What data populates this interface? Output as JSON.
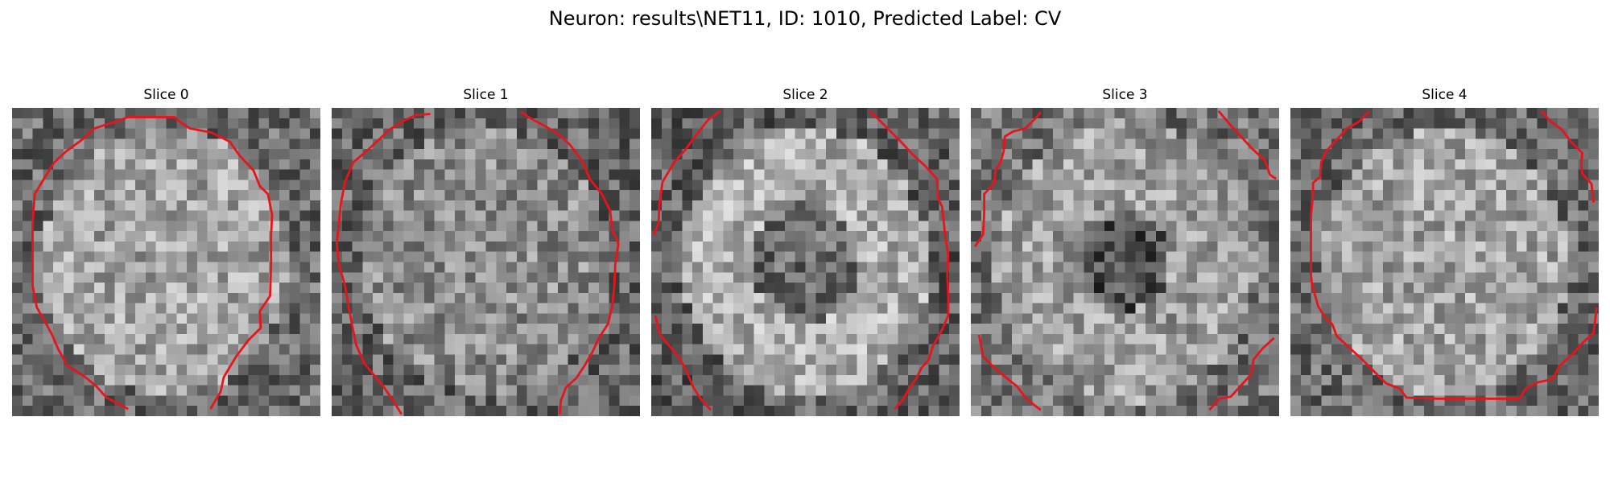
{
  "figure": {
    "title": "Neuron: results\\NET11, ID: 1010, Predicted Label: CV"
  },
  "panels": [
    {
      "title": "Slice 0",
      "seed": 11,
      "pattern": "bright-disk",
      "contour_color": "#e8141b"
    },
    {
      "title": "Slice 1",
      "seed": 23,
      "pattern": "noisy-disk",
      "contour_color": "#e8141b"
    },
    {
      "title": "Slice 2",
      "seed": 37,
      "pattern": "ring",
      "contour_color": "#e8141b"
    },
    {
      "title": "Slice 3",
      "seed": 41,
      "pattern": "dark-center",
      "contour_color": "#e8141b"
    },
    {
      "title": "Slice 4",
      "seed": 53,
      "pattern": "bright-disk",
      "contour_color": "#e8141b"
    }
  ]
}
